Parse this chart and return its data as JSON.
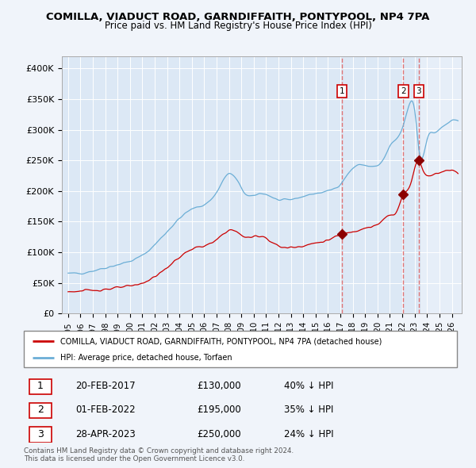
{
  "title_line1": "COMILLA, VIADUCT ROAD, GARNDIFFAITH, PONTYPOOL, NP4 7PA",
  "title_line2": "Price paid vs. HM Land Registry's House Price Index (HPI)",
  "sale_prices": [
    130000,
    195000,
    250000
  ],
  "sale_labels": [
    "1",
    "2",
    "3"
  ],
  "sale_hpi_pct": [
    "40% ↓ HPI",
    "35% ↓ HPI",
    "24% ↓ HPI"
  ],
  "sale_dates_str": [
    "20-FEB-2017",
    "01-FEB-2022",
    "28-APR-2023"
  ],
  "sale_prices_str": [
    "£130,000",
    "£195,000",
    "£250,000"
  ],
  "sale_years": [
    2017.12,
    2022.08,
    2023.33
  ],
  "legend_property": "COMILLA, VIADUCT ROAD, GARNDIFFAITH, PONTYPOOL, NP4 7PA (detached house)",
  "legend_hpi": "HPI: Average price, detached house, Torfaen",
  "footer_line1": "Contains HM Land Registry data © Crown copyright and database right 2024.",
  "footer_line2": "This data is licensed under the Open Government Licence v3.0.",
  "hpi_color": "#6baed6",
  "property_color": "#cc0000",
  "vline_color": "#e06060",
  "marker_color": "#8b0000",
  "plot_bg": "#dce8f5",
  "fig_bg": "#f0f4fa",
  "ylim_max": 420000,
  "ylim_min": 0,
  "yticks": [
    0,
    50000,
    100000,
    150000,
    200000,
    250000,
    300000,
    350000,
    400000
  ],
  "ytick_labels": [
    "£0",
    "£50K",
    "£100K",
    "£150K",
    "£200K",
    "£250K",
    "£300K",
    "£350K",
    "£400K"
  ],
  "xlim_min": 1994.5,
  "xlim_max": 2026.8,
  "hpi_anchors_x": [
    1995.0,
    1997.0,
    1999.0,
    2001.0,
    2003.5,
    2005.0,
    2007.0,
    2008.0,
    2009.5,
    2010.5,
    2012.0,
    2013.0,
    2015.0,
    2017.17,
    2018.0,
    2019.0,
    2020.5,
    2021.0,
    2022.0,
    2022.5,
    2023.0,
    2023.4,
    2024.0,
    2024.5,
    2025.0,
    2025.5,
    2026.5
  ],
  "hpi_anchors_y": [
    65000,
    70000,
    80000,
    95000,
    145000,
    170000,
    198000,
    228000,
    192000,
    196000,
    185000,
    186000,
    196000,
    216000,
    237000,
    242000,
    252000,
    272000,
    302000,
    337000,
    332000,
    260000,
    285000,
    295000,
    300000,
    308000,
    312000
  ],
  "prop_anchors_x": [
    1995.0,
    1997.0,
    1999.0,
    2001.0,
    2003.0,
    2005.0,
    2007.0,
    2008.0,
    2009.5,
    2010.5,
    2012.0,
    2013.0,
    2015.0,
    2016.5,
    2017.12,
    2018.0,
    2019.0,
    2020.0,
    2021.0,
    2021.5,
    2022.08,
    2022.6,
    2023.33,
    2023.6,
    2024.0,
    2024.5,
    2025.0,
    2025.5,
    2026.5
  ],
  "prop_anchors_y": [
    36000,
    38000,
    42000,
    50000,
    75000,
    105000,
    120000,
    136000,
    124000,
    127000,
    110000,
    108000,
    115000,
    124000,
    130000,
    134000,
    140000,
    145000,
    160000,
    165000,
    195000,
    207000,
    250000,
    238000,
    225000,
    228000,
    230000,
    233000,
    228000
  ]
}
